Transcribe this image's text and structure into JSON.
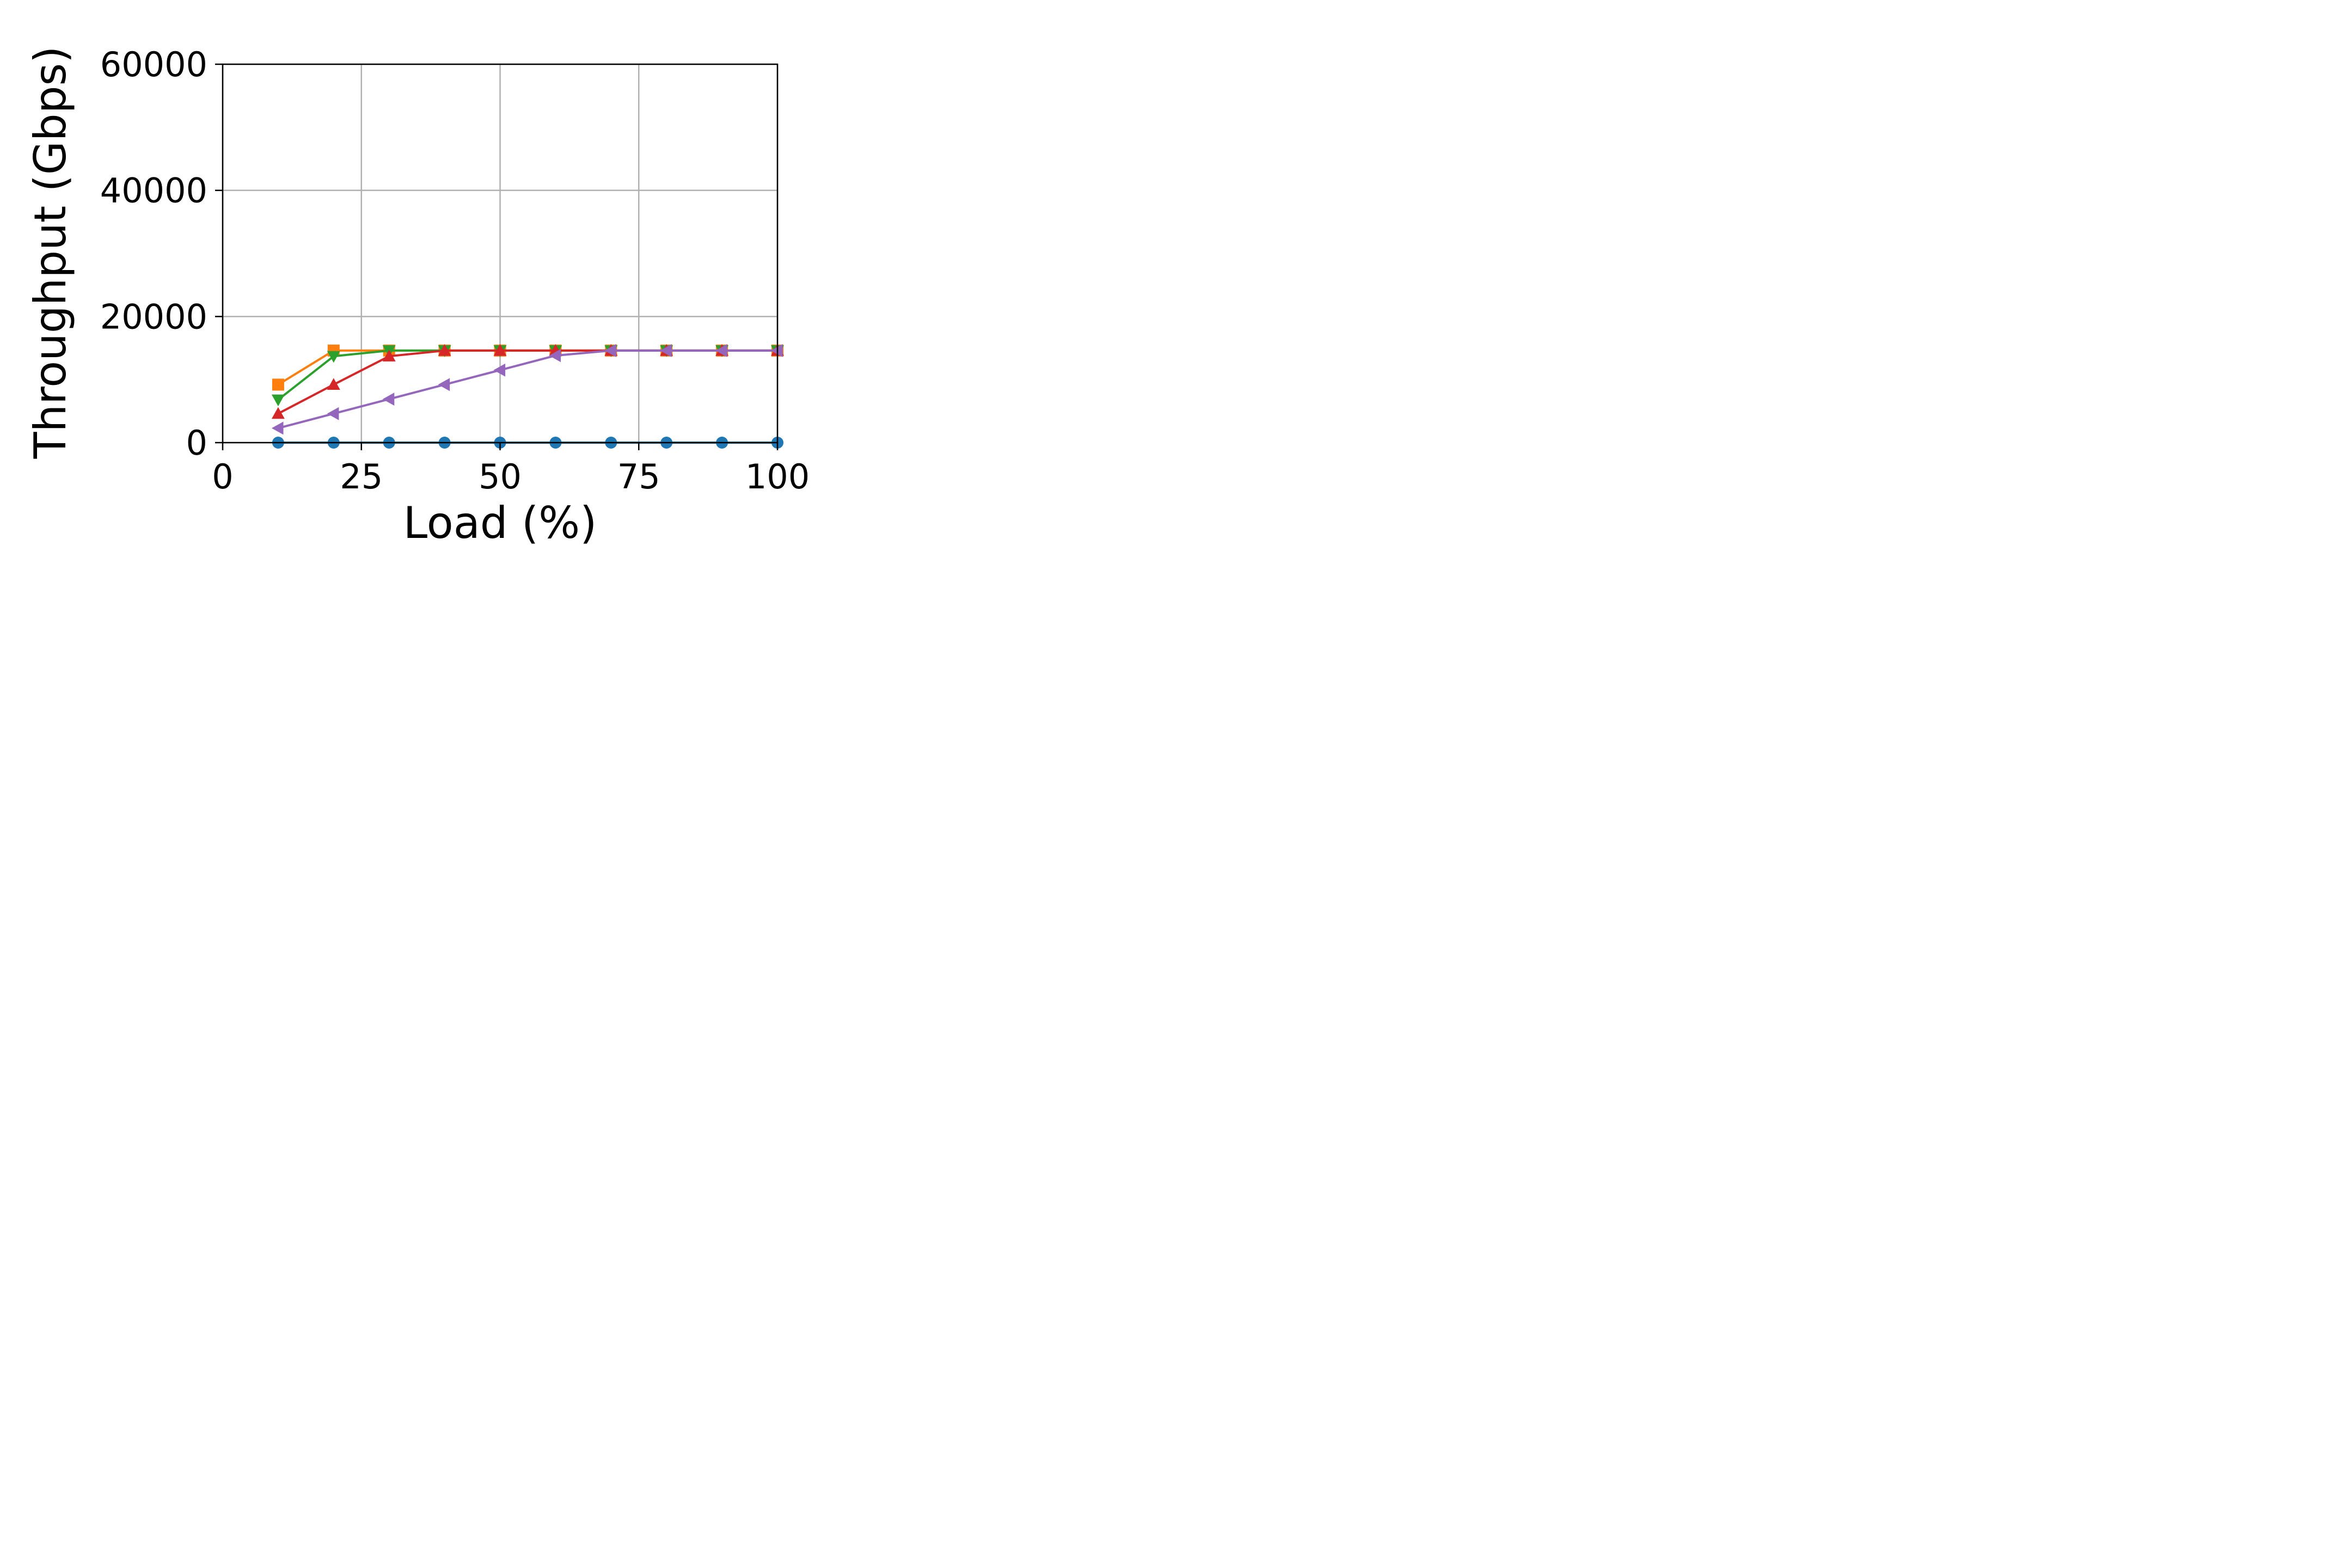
{
  "chart_data": {
    "type": "line",
    "title": "",
    "xlabel": "Load (%)",
    "ylabel": "Throughput (Gbps)",
    "xlim": [
      0,
      100
    ],
    "ylim": [
      0,
      60000
    ],
    "xticks": [
      0,
      25,
      50,
      75,
      100
    ],
    "yticks": [
      0,
      20000,
      40000,
      60000
    ],
    "xtick_labels": [
      "0",
      "25",
      "50",
      "75",
      "100"
    ],
    "ytick_labels": [
      "0",
      "20000",
      "40000",
      "60000"
    ],
    "grid": true,
    "legend": "none",
    "series": [
      {
        "color": "#1f77b4",
        "marker": "circle",
        "x": [
          10,
          20,
          30,
          40,
          50,
          60,
          70,
          80,
          90,
          100
        ],
        "y": [
          0,
          0,
          0,
          0,
          0,
          0,
          0,
          0,
          0,
          0
        ]
      },
      {
        "color": "#ff7f0e",
        "marker": "square",
        "x": [
          10,
          20,
          30,
          40,
          50,
          60,
          70,
          80,
          90,
          100
        ],
        "y": [
          9200,
          14600,
          14600,
          14600,
          14600,
          14600,
          14600,
          14600,
          14600,
          14600
        ]
      },
      {
        "color": "#2ca02c",
        "marker": "triangle-down",
        "x": [
          10,
          20,
          30,
          40,
          50,
          60,
          70,
          80,
          90,
          100
        ],
        "y": [
          6800,
          13700,
          14600,
          14600,
          14600,
          14600,
          14600,
          14600,
          14600,
          14600
        ]
      },
      {
        "color": "#d62728",
        "marker": "triangle-up",
        "x": [
          10,
          20,
          30,
          40,
          50,
          60,
          70,
          80,
          90,
          100
        ],
        "y": [
          4600,
          9200,
          13700,
          14600,
          14600,
          14600,
          14600,
          14600,
          14600,
          14600
        ]
      },
      {
        "color": "#9467bd",
        "marker": "triangle-left",
        "x": [
          10,
          20,
          30,
          40,
          50,
          60,
          70,
          80,
          90,
          100
        ],
        "y": [
          2300,
          4600,
          6900,
          9200,
          11500,
          13800,
          14600,
          14600,
          14600,
          14600
        ]
      }
    ]
  }
}
